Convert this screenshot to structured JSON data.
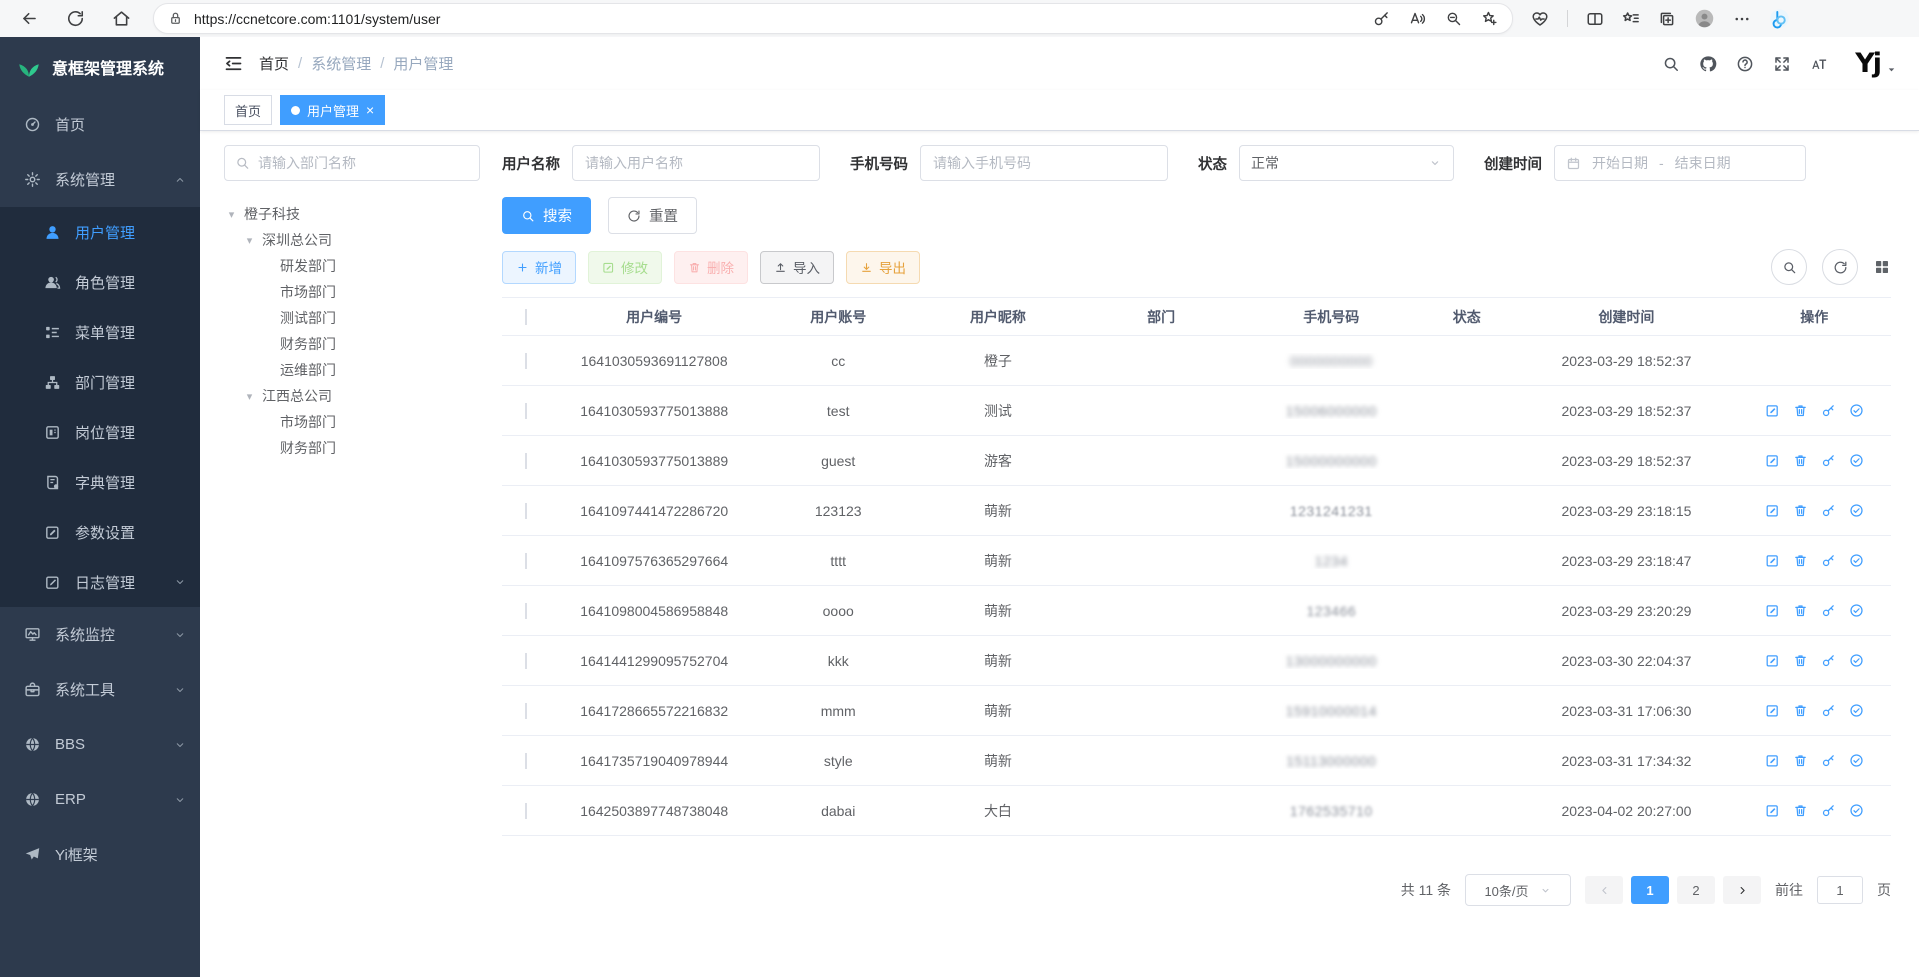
{
  "browser": {
    "url": "https://ccnetcore.com:1101/system/user",
    "left_icons": [
      {
        "name": "back",
        "icon": "back"
      },
      {
        "name": "refresh-page",
        "icon": "refresh"
      },
      {
        "name": "home",
        "icon": "home"
      }
    ],
    "pill_icons": [
      {
        "name": "password-key",
        "icon": "key-round"
      },
      {
        "name": "read-aloud",
        "icon": "read-aloud"
      },
      {
        "name": "zoom-out",
        "icon": "zoom-out"
      },
      {
        "name": "add-favorite",
        "icon": "star-plus"
      }
    ],
    "right_icons": [
      {
        "name": "browser-essentials",
        "icon": "essentials"
      },
      {
        "name": "divider",
        "icon": ""
      },
      {
        "name": "split-screen",
        "icon": "split"
      },
      {
        "name": "favorites-bar",
        "icon": "fav-bar"
      },
      {
        "name": "collections",
        "icon": "collections"
      },
      {
        "name": "profile-avatar",
        "icon": "profile",
        "big": true
      },
      {
        "name": "more-options",
        "icon": "more"
      },
      {
        "name": "copilot",
        "icon": "copilot",
        "big": true
      }
    ]
  },
  "sidebar": {
    "title": "意框架管理系统",
    "menu": [
      {
        "key": "home",
        "label": "首页",
        "icon": "dashboard"
      },
      {
        "key": "system",
        "label": "系统管理",
        "icon": "gear",
        "type": "group",
        "expanded": true,
        "children": [
          {
            "key": "user",
            "label": "用户管理",
            "icon": "user",
            "active": true
          },
          {
            "key": "role",
            "label": "角色管理",
            "icon": "users"
          },
          {
            "key": "menu",
            "label": "菜单管理",
            "icon": "menu-tree"
          },
          {
            "key": "dept",
            "label": "部门管理",
            "icon": "org-tree"
          },
          {
            "key": "post",
            "label": "岗位管理",
            "icon": "badge"
          },
          {
            "key": "dict",
            "label": "字典管理",
            "icon": "dict"
          },
          {
            "key": "param",
            "label": "参数设置",
            "icon": "edit-square"
          },
          {
            "key": "log",
            "label": "日志管理",
            "icon": "log",
            "arrow": "down"
          }
        ]
      },
      {
        "key": "monitor",
        "label": "系统监控",
        "icon": "monitor",
        "arrow": "down"
      },
      {
        "key": "tool",
        "label": "系统工具",
        "icon": "toolbox",
        "arrow": "down"
      },
      {
        "key": "bbs",
        "label": "BBS",
        "icon": "globe",
        "arrow": "down"
      },
      {
        "key": "erp",
        "label": "ERP",
        "icon": "globe",
        "arrow": "down"
      },
      {
        "key": "yi",
        "label": "Yi框架",
        "icon": "plane"
      }
    ]
  },
  "navbar": {
    "breadcrumb": [
      "首页",
      "系统管理",
      "用户管理"
    ],
    "right_icons": [
      {
        "name": "search",
        "icon": "search"
      },
      {
        "name": "github",
        "icon": "github"
      },
      {
        "name": "help",
        "icon": "help"
      },
      {
        "name": "fullscreen",
        "icon": "fullscreen"
      },
      {
        "name": "font-size",
        "icon": "font-size"
      }
    ],
    "avatar_text": "Yj"
  },
  "tabs": [
    {
      "key": "home",
      "label": "首页"
    },
    {
      "key": "user",
      "label": "用户管理",
      "active": true,
      "dot": true,
      "closable": true
    }
  ],
  "filters": {
    "dept_placeholder": "请输入部门名称",
    "fields": [
      {
        "key": "username",
        "label": "用户名称",
        "type": "input",
        "placeholder": "请输入用户名称"
      },
      {
        "key": "phone",
        "label": "手机号码",
        "type": "input",
        "placeholder": "请输入手机号码"
      },
      {
        "key": "status",
        "label": "状态",
        "type": "select",
        "value": "正常"
      },
      {
        "key": "created",
        "label": "创建时间",
        "type": "daterange",
        "start": "开始日期",
        "sep": "-",
        "end": "结束日期"
      }
    ],
    "search_label": "搜索",
    "reset_label": "重置"
  },
  "tree": {
    "nodes": [
      {
        "label": "橙子科技",
        "children": [
          {
            "label": "深圳总公司",
            "children": [
              {
                "label": "研发部门"
              },
              {
                "label": "市场部门"
              },
              {
                "label": "测试部门"
              },
              {
                "label": "财务部门"
              },
              {
                "label": "运维部门"
              }
            ]
          },
          {
            "label": "江西总公司",
            "children": [
              {
                "label": "市场部门"
              },
              {
                "label": "财务部门"
              }
            ]
          }
        ]
      }
    ]
  },
  "toolbar": {
    "buttons": [
      {
        "key": "add",
        "label": "新增",
        "icon": "plus",
        "kind": "primary"
      },
      {
        "key": "edit",
        "label": "修改",
        "icon": "edit",
        "kind": "success",
        "disabled": true
      },
      {
        "key": "delete",
        "label": "删除",
        "icon": "trash",
        "kind": "danger",
        "disabled": true
      },
      {
        "key": "import",
        "label": "导入",
        "icon": "upload",
        "kind": "info"
      },
      {
        "key": "export",
        "label": "导出",
        "icon": "download",
        "kind": "warning"
      }
    ],
    "right_icons": [
      {
        "name": "toggle-search",
        "icon": "search",
        "circle": true
      },
      {
        "name": "refresh-table",
        "icon": "refresh",
        "circle": true
      },
      {
        "name": "column-settings",
        "icon": "grid",
        "circle": false
      }
    ]
  },
  "table": {
    "columns": [
      "用户编号",
      "用户账号",
      "用户昵称",
      "部门",
      "手机号码",
      "状态",
      "创建时间",
      "操作"
    ],
    "action_icons": [
      {
        "name": "edit-user",
        "icon": "edit"
      },
      {
        "name": "delete-user",
        "icon": "trash"
      },
      {
        "name": "reset-password",
        "icon": "key"
      },
      {
        "name": "assign-role",
        "icon": "check-circle"
      }
    ],
    "rows": [
      {
        "id": "1641030593691127808",
        "account": "cc",
        "nickname": "橙子",
        "dept": "",
        "phone": "0000000000",
        "phone_blur": 3,
        "status": true,
        "created": "2023-03-29 18:52:37",
        "actions": false
      },
      {
        "id": "1641030593775013888",
        "account": "test",
        "nickname": "测试",
        "dept": "",
        "phone": "15006000000",
        "phone_blur": 2.5,
        "status": true,
        "created": "2023-03-29 18:52:37",
        "actions": true
      },
      {
        "id": "1641030593775013889",
        "account": "guest",
        "nickname": "游客",
        "dept": "",
        "phone": "15000000000",
        "phone_blur": 2.5,
        "status": true,
        "created": "2023-03-29 18:52:37",
        "actions": true
      },
      {
        "id": "1641097441472286720",
        "account": "123123",
        "nickname": "萌新",
        "dept": "",
        "phone": "1231241231",
        "phone_blur": 1,
        "status": true,
        "created": "2023-03-29 23:18:15",
        "actions": true
      },
      {
        "id": "1641097576365297664",
        "account": "tttt",
        "nickname": "萌新",
        "dept": "",
        "phone": "1234",
        "phone_blur": 2.5,
        "status": true,
        "created": "2023-03-29 23:18:47",
        "actions": true
      },
      {
        "id": "1641098004586958848",
        "account": "oooo",
        "nickname": "萌新",
        "dept": "",
        "phone": "123466",
        "phone_blur": 1.5,
        "status": true,
        "created": "2023-03-29 23:20:29",
        "actions": true
      },
      {
        "id": "1641441299095752704",
        "account": "kkk",
        "nickname": "萌新",
        "dept": "",
        "phone": "13000000000",
        "phone_blur": 2.5,
        "status": true,
        "created": "2023-03-30 22:04:37",
        "actions": true
      },
      {
        "id": "1641728665572216832",
        "account": "mmm",
        "nickname": "萌新",
        "dept": "",
        "phone": "15910000014",
        "phone_blur": 2,
        "status": true,
        "created": "2023-03-31 17:06:30",
        "actions": true
      },
      {
        "id": "1641735719040978944",
        "account": "style",
        "nickname": "萌新",
        "dept": "",
        "phone": "15113000000",
        "phone_blur": 2,
        "status": true,
        "created": "2023-03-31 17:34:32",
        "actions": true
      },
      {
        "id": "1642503897748738048",
        "account": "dabai",
        "nickname": "大白",
        "dept": "",
        "phone": "1762535710",
        "phone_blur": 1.5,
        "status": true,
        "created": "2023-04-02 20:27:00",
        "actions": true
      }
    ]
  },
  "pagination": {
    "total_text": "共 11 条",
    "page_size": "10条/页",
    "pages": [
      "1",
      "2"
    ],
    "active_page": "1",
    "goto_label": "前往",
    "goto_value": "1",
    "unit_label": "页"
  }
}
